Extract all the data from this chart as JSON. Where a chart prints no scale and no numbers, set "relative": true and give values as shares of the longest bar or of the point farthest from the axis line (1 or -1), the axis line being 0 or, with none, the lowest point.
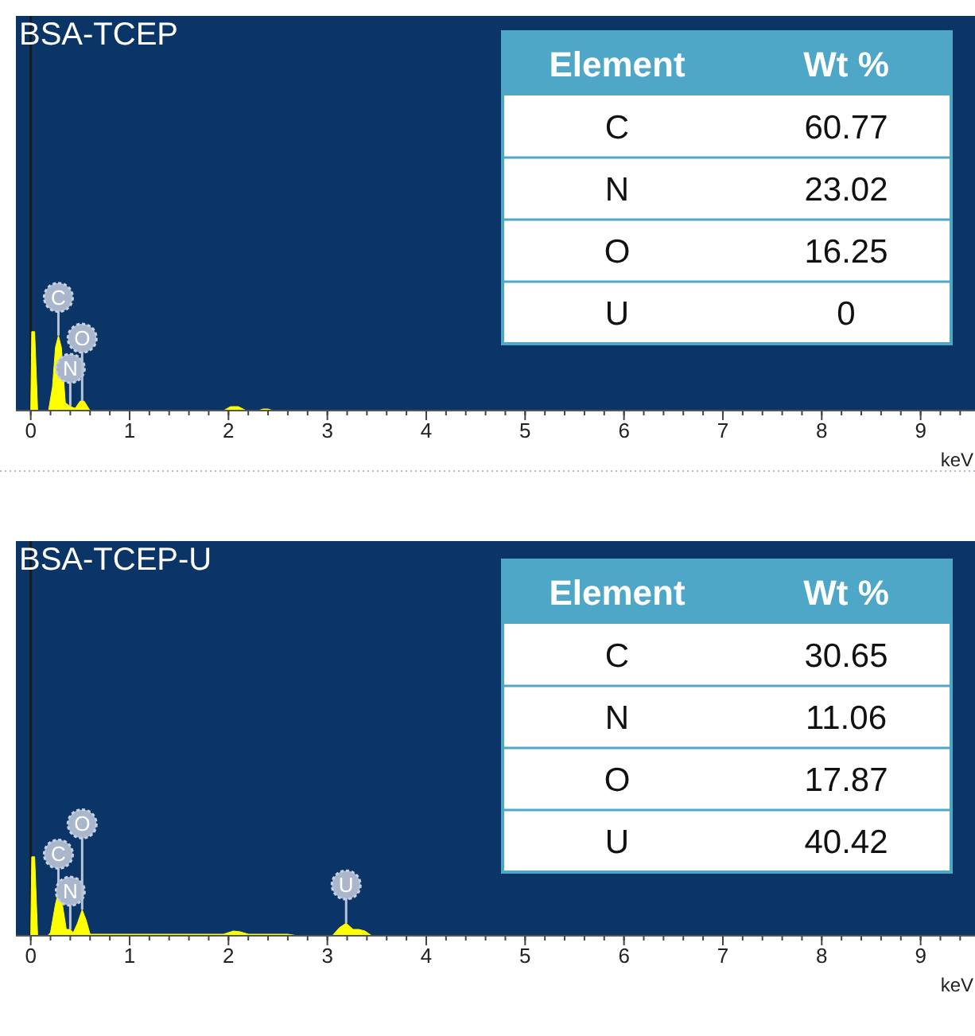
{
  "chart_data": [
    {
      "type": "area",
      "title": "BSA-TCEP",
      "relative": true,
      "xlabel": "keV",
      "xlim": [
        -0.15,
        9.55
      ],
      "xticks": [
        0,
        1,
        2,
        3,
        4,
        5,
        6,
        7,
        8,
        9
      ],
      "tick_labels": "x",
      "series": [
        {
          "color": "#ffff00",
          "x": [
            -0.15,
            0,
            0.01,
            0.04,
            0.07,
            0.18,
            0.22,
            0.25,
            0.28,
            0.31,
            0.35,
            0.4,
            0.45,
            0.5,
            0.54,
            0.6,
            1.95,
            2.02,
            2.1,
            2.18,
            2.3,
            2.35,
            2.4,
            2.45,
            9.55
          ],
          "values": [
            0,
            0,
            1,
            1,
            0,
            0,
            0.3,
            0.8,
            0.95,
            0.8,
            0.1,
            0.05,
            0.03,
            0.12,
            0.12,
            0,
            0,
            0.05,
            0.05,
            0,
            0,
            0.02,
            0.02,
            0,
            0
          ]
        }
      ],
      "ref_lines": [
        {
          "axis": "x",
          "value": 0,
          "color": "#1a1a1a"
        }
      ],
      "annotations": [
        {
          "text": "C",
          "x": 0.28,
          "y": 0.95
        },
        {
          "text": "N",
          "x": 0.4,
          "y": 0.05
        },
        {
          "text": "O",
          "x": 0.52,
          "y": 0.12
        }
      ]
    },
    {
      "type": "other",
      "xlabel": "Element",
      "ylabel": "Wt %",
      "categories": [
        "C",
        "N",
        "O",
        "U"
      ],
      "values": [
        60.77,
        23.02,
        16.25,
        0
      ],
      "data_labels": true
    },
    {
      "type": "area",
      "title": "BSA-TCEP-U",
      "relative": true,
      "xlabel": "keV",
      "xlim": [
        -0.15,
        9.55
      ],
      "xticks": [
        0,
        1,
        2,
        3,
        4,
        5,
        6,
        7,
        8,
        9
      ],
      "tick_labels": "x",
      "series": [
        {
          "color": "#ffff00",
          "x": [
            -0.15,
            0,
            0.01,
            0.04,
            0.07,
            0.17,
            0.2,
            0.25,
            0.28,
            0.32,
            0.36,
            0.4,
            0.43,
            0.47,
            0.52,
            0.56,
            0.6,
            0.75,
            1.8,
            1.95,
            2.05,
            2.12,
            2.2,
            2.6,
            2.7,
            3.05,
            3.12,
            3.19,
            3.26,
            3.32,
            3.38,
            3.45,
            9.55
          ],
          "values": [
            0,
            0,
            1,
            1,
            0,
            0,
            0.04,
            0.4,
            0.55,
            0.4,
            0.08,
            0.08,
            0.04,
            0.15,
            0.33,
            0.2,
            0.02,
            0.02,
            0.02,
            0.02,
            0.06,
            0.05,
            0.02,
            0.02,
            0,
            0,
            0.1,
            0.16,
            0.08,
            0.08,
            0.06,
            0,
            0
          ]
        }
      ],
      "ref_lines": [
        {
          "axis": "x",
          "value": 0,
          "color": "#1a1a1a"
        }
      ],
      "annotations": [
        {
          "text": "C",
          "x": 0.28,
          "y": 0.55
        },
        {
          "text": "N",
          "x": 0.4,
          "y": 0.08
        },
        {
          "text": "O",
          "x": 0.52,
          "y": 0.33
        },
        {
          "text": "U",
          "x": 3.19,
          "y": 0.16
        }
      ]
    },
    {
      "type": "other",
      "xlabel": "Element",
      "ylabel": "Wt %",
      "categories": [
        "C",
        "N",
        "O",
        "U"
      ],
      "values": [
        30.65,
        11.06,
        17.87,
        40.42
      ],
      "data_labels": true
    }
  ]
}
